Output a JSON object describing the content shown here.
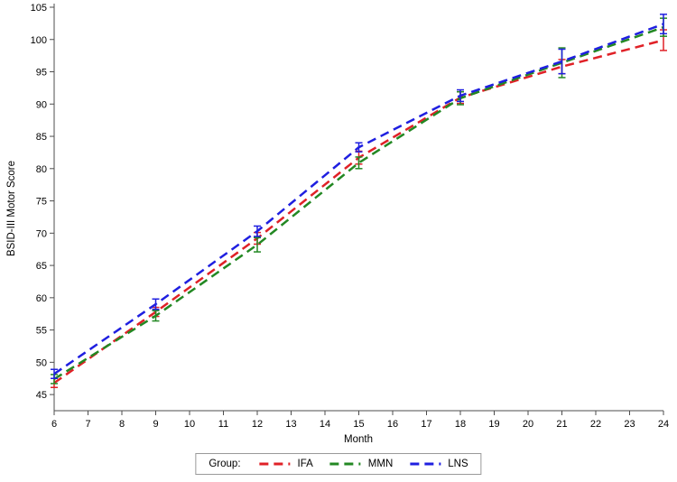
{
  "chart_data": {
    "type": "line",
    "title": "",
    "xlabel": "Month",
    "ylabel": "BSID-III Motor Score",
    "legend_title": "Group:",
    "legend_position": "bottom",
    "grid": false,
    "x": [
      6,
      9,
      12,
      15,
      18,
      21,
      24
    ],
    "xlim": [
      6,
      24
    ],
    "xticks": [
      6,
      7,
      8,
      9,
      10,
      11,
      12,
      13,
      14,
      15,
      16,
      17,
      18,
      19,
      20,
      21,
      22,
      23,
      24
    ],
    "ylim": [
      42.5,
      105
    ],
    "yticks": [
      45,
      50,
      55,
      60,
      65,
      70,
      75,
      80,
      85,
      90,
      95,
      100,
      105
    ],
    "error_bars": true,
    "line_style": "dashed",
    "series": [
      {
        "name": "IFA",
        "color": "#e02127",
        "dash": "10,6",
        "values": [
          46.8,
          57.8,
          69.2,
          81.7,
          91.0,
          95.8,
          99.9
        ],
        "errors": [
          0.7,
          0.7,
          0.9,
          1.0,
          0.9,
          1.1,
          1.6
        ]
      },
      {
        "name": "MMN",
        "color": "#238823",
        "dash": "10,6",
        "values": [
          47.4,
          57.2,
          68.2,
          80.9,
          90.9,
          96.4,
          101.9
        ],
        "errors": [
          0.7,
          0.8,
          1.1,
          0.9,
          1.0,
          2.3,
          1.4
        ]
      },
      {
        "name": "LNS",
        "color": "#1f1fe0",
        "dash": "10,6",
        "values": [
          48.2,
          59.0,
          70.3,
          83.3,
          91.3,
          96.6,
          102.4
        ],
        "errors": [
          0.7,
          0.8,
          0.8,
          0.7,
          0.9,
          1.9,
          1.5
        ]
      }
    ]
  }
}
